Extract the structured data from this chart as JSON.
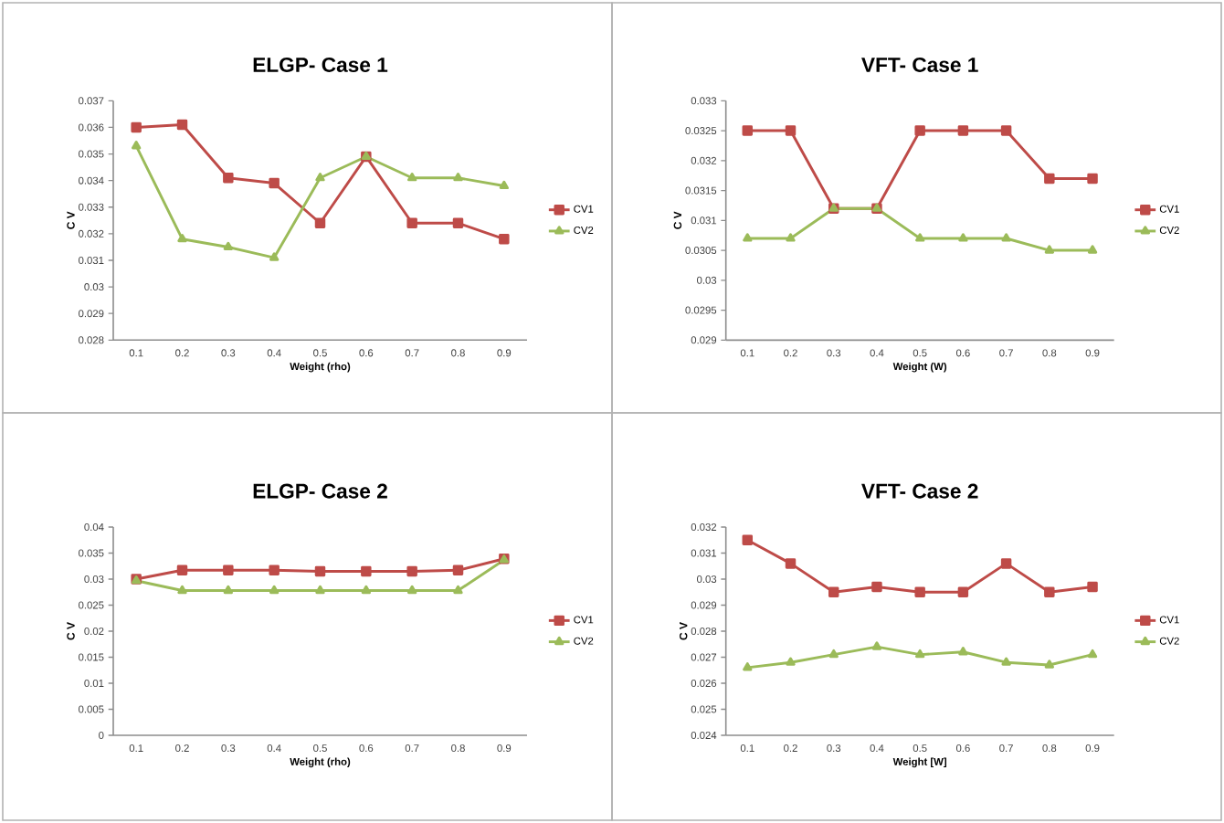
{
  "chart_data": [
    {
      "type": "line",
      "title": "ELGP- Case 1",
      "xlabel": "Weight (rho)",
      "ylabel": "C V",
      "categories": [
        "0.1",
        "0.2",
        "0.3",
        "0.4",
        "0.5",
        "0.6",
        "0.7",
        "0.8",
        "0.9"
      ],
      "ylim": [
        0.028,
        0.037
      ],
      "yticks": [
        0.028,
        0.029,
        0.03,
        0.031,
        0.032,
        0.033,
        0.034,
        0.035,
        0.036,
        0.037
      ],
      "legend": "right",
      "series": [
        {
          "name": "CV1",
          "color": "#be4b48",
          "marker": "square",
          "values": [
            0.036,
            0.0361,
            0.0341,
            0.0339,
            0.0324,
            0.0349,
            0.0324,
            0.0324,
            0.0318
          ]
        },
        {
          "name": "CV2",
          "color": "#9bbb59",
          "marker": "triangle",
          "values": [
            0.0353,
            0.0318,
            0.0315,
            0.0311,
            0.0341,
            0.0349,
            0.0341,
            0.0341,
            0.0338
          ]
        }
      ]
    },
    {
      "type": "line",
      "title": "VFT- Case 1",
      "xlabel": "Weight (W)",
      "ylabel": "C V",
      "categories": [
        "0.1",
        "0.2",
        "0.3",
        "0.4",
        "0.5",
        "0.6",
        "0.7",
        "0.8",
        "0.9"
      ],
      "ylim": [
        0.029,
        0.033
      ],
      "yticks": [
        0.029,
        0.0295,
        0.03,
        0.0305,
        0.031,
        0.0315,
        0.032,
        0.0325,
        0.033
      ],
      "legend": "right",
      "series": [
        {
          "name": "CV1",
          "color": "#be4b48",
          "marker": "square",
          "values": [
            0.0325,
            0.0325,
            0.0312,
            0.0312,
            0.0325,
            0.0325,
            0.0325,
            0.0317,
            0.0317
          ]
        },
        {
          "name": "CV2",
          "color": "#9bbb59",
          "marker": "triangle",
          "values": [
            0.0307,
            0.0307,
            0.0312,
            0.0312,
            0.0307,
            0.0307,
            0.0307,
            0.0305,
            0.0305
          ]
        }
      ]
    },
    {
      "type": "line",
      "title": "ELGP- Case 2",
      "xlabel": "Weight (rho)",
      "ylabel": "C V",
      "categories": [
        "0.1",
        "0.2",
        "0.3",
        "0.4",
        "0.5",
        "0.6",
        "0.7",
        "0.8",
        "0.9"
      ],
      "ylim": [
        0,
        0.04
      ],
      "yticks": [
        0,
        0.005,
        0.01,
        0.015,
        0.02,
        0.025,
        0.03,
        0.035,
        0.04
      ],
      "legend": "right",
      "series": [
        {
          "name": "CV1",
          "color": "#be4b48",
          "marker": "square",
          "values": [
            0.03,
            0.0317,
            0.0317,
            0.0317,
            0.0315,
            0.0315,
            0.0315,
            0.0317,
            0.0339
          ]
        },
        {
          "name": "CV2",
          "color": "#9bbb59",
          "marker": "triangle",
          "values": [
            0.0297,
            0.0278,
            0.0278,
            0.0278,
            0.0278,
            0.0278,
            0.0278,
            0.0278,
            0.0337
          ]
        }
      ]
    },
    {
      "type": "line",
      "title": "VFT- Case 2",
      "xlabel": "Weight [W]",
      "ylabel": "C V",
      "categories": [
        "0.1",
        "0.2",
        "0.3",
        "0.4",
        "0.5",
        "0.6",
        "0.7",
        "0.8",
        "0.9"
      ],
      "ylim": [
        0.024,
        0.032
      ],
      "yticks": [
        0.024,
        0.025,
        0.026,
        0.027,
        0.028,
        0.029,
        0.03,
        0.031,
        0.032
      ],
      "legend": "right",
      "series": [
        {
          "name": "CV1",
          "color": "#be4b48",
          "marker": "square",
          "values": [
            0.0315,
            0.0306,
            0.0295,
            0.0297,
            0.0295,
            0.0295,
            0.0306,
            0.0295,
            0.0297
          ]
        },
        {
          "name": "CV2",
          "color": "#9bbb59",
          "marker": "triangle",
          "values": [
            0.0266,
            0.0268,
            0.0271,
            0.0274,
            0.0271,
            0.0272,
            0.0268,
            0.0267,
            0.0271
          ]
        }
      ]
    }
  ]
}
